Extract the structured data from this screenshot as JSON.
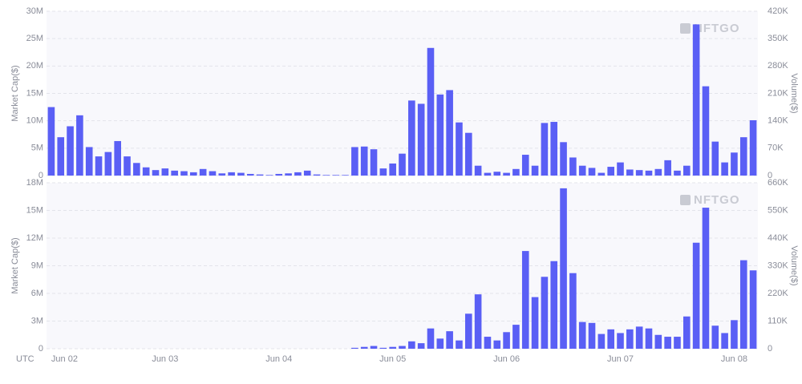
{
  "chart_data": [
    {
      "type": "bar",
      "color": "#5a5ff5",
      "y_label": "Market Cap($)",
      "y2_label": "Volume($)",
      "watermark": "NFTGO",
      "grid": true,
      "ylim": [
        0,
        30
      ],
      "yticks": [
        0,
        {
          "value": 5,
          "label": "5M"
        },
        {
          "value": 10,
          "label": "10M"
        },
        {
          "value": 15,
          "label": "15M"
        },
        {
          "value": 20,
          "label": "20M"
        },
        {
          "value": 25,
          "label": "25M"
        },
        {
          "value": 30,
          "label": "30M"
        }
      ],
      "y2lim": [
        0,
        420
      ],
      "y2ticks": [
        0,
        {
          "value": 70,
          "label": "70K"
        },
        {
          "value": 140,
          "label": "140K"
        },
        {
          "value": 210,
          "label": "210K"
        },
        {
          "value": 280,
          "label": "280K"
        },
        {
          "value": 350,
          "label": "350K"
        },
        {
          "value": 420,
          "label": "420K"
        }
      ],
      "values": [
        12.5,
        7,
        9,
        11,
        5.2,
        3.5,
        4.3,
        6.3,
        3.5,
        2.3,
        1.5,
        1,
        1.3,
        0.9,
        0.8,
        0.6,
        1.2,
        0.8,
        0.4,
        0.6,
        0.5,
        0.3,
        0.2,
        0.1,
        0.3,
        0.4,
        0.6,
        0.9,
        0.2,
        0.1,
        0.1,
        0.1,
        5.2,
        5.3,
        4.8,
        1.3,
        2.2,
        4,
        13.7,
        13.1,
        23.3,
        14.8,
        15.6,
        9.7,
        7.8,
        1.8,
        0.5,
        0.7,
        0.5,
        1.2,
        3.8,
        1.8,
        9.6,
        9.8,
        6.1,
        3.3,
        1.8,
        1.4,
        0.5,
        1.6,
        2.4,
        1.1,
        1,
        0.9,
        1.2,
        2.8,
        0.9,
        1.8,
        27.6,
        16.3,
        6.2,
        2.4,
        4.2,
        7,
        10.1
      ]
    },
    {
      "type": "bar",
      "color": "#5a5ff5",
      "y_label": "Market Cap($)",
      "y2_label": "Volume($)",
      "watermark": "NFTGO",
      "grid": true,
      "x_label": "UTC",
      "categories": [
        "Jun 02",
        null,
        null,
        null,
        null,
        null,
        null,
        null,
        null,
        null,
        null,
        null,
        "Jun 03",
        null,
        null,
        null,
        null,
        null,
        null,
        null,
        null,
        null,
        null,
        null,
        "Jun 04",
        null,
        null,
        null,
        null,
        null,
        null,
        null,
        null,
        null,
        null,
        null,
        "Jun 05",
        null,
        null,
        null,
        null,
        null,
        null,
        null,
        null,
        null,
        null,
        null,
        "Jun 06",
        null,
        null,
        null,
        null,
        null,
        null,
        null,
        null,
        null,
        null,
        null,
        "Jun 07",
        null,
        null,
        null,
        null,
        null,
        null,
        null,
        null,
        null,
        null,
        null,
        "Jun 08",
        null,
        null
      ],
      "ylim": [
        0,
        18
      ],
      "yticks": [
        0,
        {
          "value": 3,
          "label": "3M"
        },
        {
          "value": 6,
          "label": "6M"
        },
        {
          "value": 9,
          "label": "9M"
        },
        {
          "value": 12,
          "label": "12M"
        },
        {
          "value": 15,
          "label": "15M"
        },
        {
          "value": 18,
          "label": "18M"
        }
      ],
      "y2lim": [
        0,
        660
      ],
      "y2ticks": [
        0,
        {
          "value": 110,
          "label": "110K"
        },
        {
          "value": 220,
          "label": "220K"
        },
        {
          "value": 330,
          "label": "330K"
        },
        {
          "value": 440,
          "label": "440K"
        },
        {
          "value": 550,
          "label": "550K"
        },
        {
          "value": 660,
          "label": "660K"
        }
      ],
      "values": [
        0,
        0,
        0,
        0,
        0,
        0,
        0,
        0,
        0,
        0,
        0,
        0,
        0,
        0,
        0,
        0,
        0,
        0,
        0,
        0,
        0,
        0,
        0,
        0,
        0,
        0,
        0,
        0,
        0,
        0,
        0,
        0,
        0.1,
        0.2,
        0.3,
        0.1,
        0.2,
        0.3,
        0.8,
        0.6,
        2.2,
        1.1,
        1.9,
        0.9,
        3.8,
        5.9,
        1.3,
        0.9,
        1.8,
        2.6,
        10.6,
        5.6,
        7.8,
        9.5,
        17.4,
        8.2,
        2.9,
        2.8,
        1.6,
        2.1,
        1.7,
        2.1,
        2.4,
        2.2,
        1.5,
        1.3,
        1.3,
        3.5,
        11.5,
        15.3,
        2.5,
        1.7,
        3.1,
        9.6,
        8.5
      ]
    }
  ]
}
